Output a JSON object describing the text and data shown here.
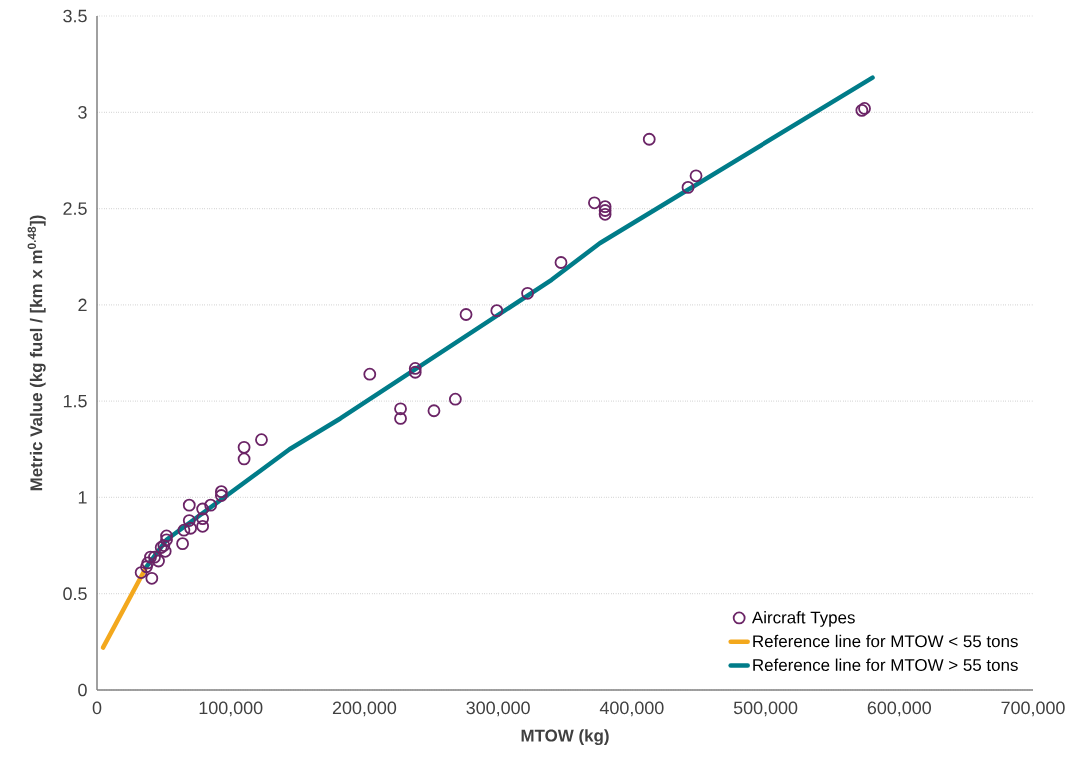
{
  "chart_data": {
    "type": "scatter",
    "xlabel": "MTOW (kg)",
    "ylabel": "Metric Value (kg fuel / [km x m$^{0.48}$])",
    "xlim": [
      0,
      700000
    ],
    "ylim": [
      0,
      3.5
    ],
    "xticks": [
      0,
      {
        "value": 100000,
        "label": "100,000"
      },
      {
        "value": 200000,
        "label": "200,000"
      },
      {
        "value": 300000,
        "label": "300,000"
      },
      {
        "value": 400000,
        "label": "400,000"
      },
      {
        "value": 500000,
        "label": "500,000"
      },
      {
        "value": 600000,
        "label": "600,000"
      },
      {
        "value": 700000,
        "label": "700,000"
      }
    ],
    "yticks": [
      0,
      0.5,
      1,
      1.5,
      2,
      2.5,
      3,
      3.5
    ],
    "grid": "y",
    "legend": "bottom right",
    "series": [
      {
        "name": "Aircraft Types",
        "marker": "circle",
        "color": "#6b2466",
        "x": [
          574000,
          572000,
          413000,
          448000,
          442000,
          372000,
          380000,
          380000,
          380000,
          347000,
          322000,
          299000,
          276000,
          238000,
          238000,
          204000,
          227000,
          227000,
          252000,
          268000,
          123000,
          110000,
          110000,
          93000,
          93000,
          85000,
          69000,
          79000,
          69000,
          79000,
          79000,
          70000,
          65000,
          64000,
          52000,
          52000,
          50000,
          48000,
          51000,
          43000,
          40000,
          46000,
          38000,
          37000,
          33000,
          41000
        ],
        "values": [
          3.02,
          3.01,
          2.86,
          2.67,
          2.61,
          2.53,
          2.51,
          2.49,
          2.47,
          2.22,
          2.06,
          1.97,
          1.95,
          1.67,
          1.65,
          1.64,
          1.46,
          1.41,
          1.45,
          1.51,
          1.3,
          1.26,
          1.2,
          1.03,
          1.01,
          0.96,
          0.96,
          0.94,
          0.88,
          0.89,
          0.85,
          0.84,
          0.83,
          0.76,
          0.8,
          0.78,
          0.75,
          0.74,
          0.72,
          0.69,
          0.69,
          0.67,
          0.66,
          0.64,
          0.61,
          0.58
        ]
      },
      {
        "name": "Reference line for MTOW < 55 tons",
        "type": "line",
        "marker": "none",
        "color": "#f3a81d",
        "x": [
          4500,
          37000
        ],
        "values": [
          0.22,
          0.64
        ]
      },
      {
        "name": "Reference line for MTOW > 55 tons",
        "type": "line",
        "marker": "none",
        "color": "#007c89",
        "x": [
          37000,
          52000,
          144000,
          182000,
          340000,
          376000,
          580000
        ],
        "values": [
          0.64,
          0.78,
          1.25,
          1.41,
          2.13,
          2.32,
          3.18
        ]
      }
    ]
  }
}
